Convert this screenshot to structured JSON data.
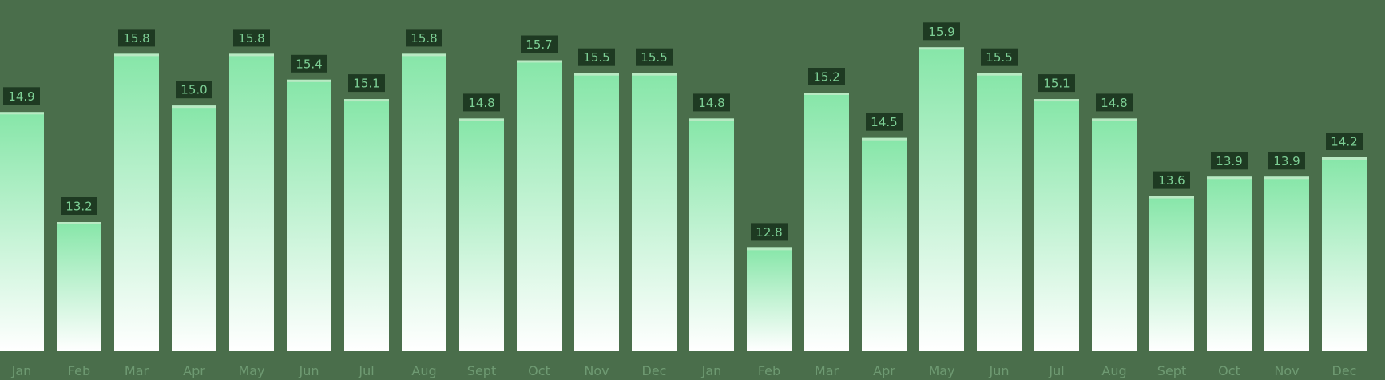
{
  "colors": {
    "background": "#4a6e4b",
    "bar_top": "#86e6a8",
    "bar_bottom": "#ffffff",
    "label_bg": "#1e3a22",
    "label_text": "#7dcf95",
    "tick_text": "#6e9a72"
  },
  "chart_data": {
    "type": "bar",
    "title": "",
    "xlabel": "",
    "ylabel": "",
    "grid": false,
    "legend": "none",
    "ylim": [
      11.2,
      16.1
    ],
    "categories": [
      "Jan",
      "Feb",
      "Mar",
      "Apr",
      "May",
      "Jun",
      "Jul",
      "Aug",
      "Sept",
      "Oct",
      "Nov",
      "Dec",
      "Jan",
      "Feb",
      "Mar",
      "Apr",
      "May",
      "Jun",
      "Jul",
      "Aug",
      "Sept",
      "Oct",
      "Nov",
      "Dec"
    ],
    "values": [
      14.9,
      13.2,
      15.8,
      15.0,
      15.8,
      15.4,
      15.1,
      15.8,
      14.8,
      15.7,
      15.5,
      15.5,
      14.8,
      12.8,
      15.2,
      14.5,
      15.9,
      15.5,
      15.1,
      14.8,
      13.6,
      13.9,
      13.9,
      14.2
    ],
    "value_labels": [
      "14.9",
      "13.2",
      "15.8",
      "15.0",
      "15.8",
      "15.4",
      "15.1",
      "15.8",
      "14.8",
      "15.7",
      "15.5",
      "15.5",
      "14.8",
      "12.8",
      "15.2",
      "14.5",
      "15.9",
      "15.5",
      "15.1",
      "14.8",
      "13.6",
      "13.9",
      "13.9",
      "14.2"
    ]
  }
}
